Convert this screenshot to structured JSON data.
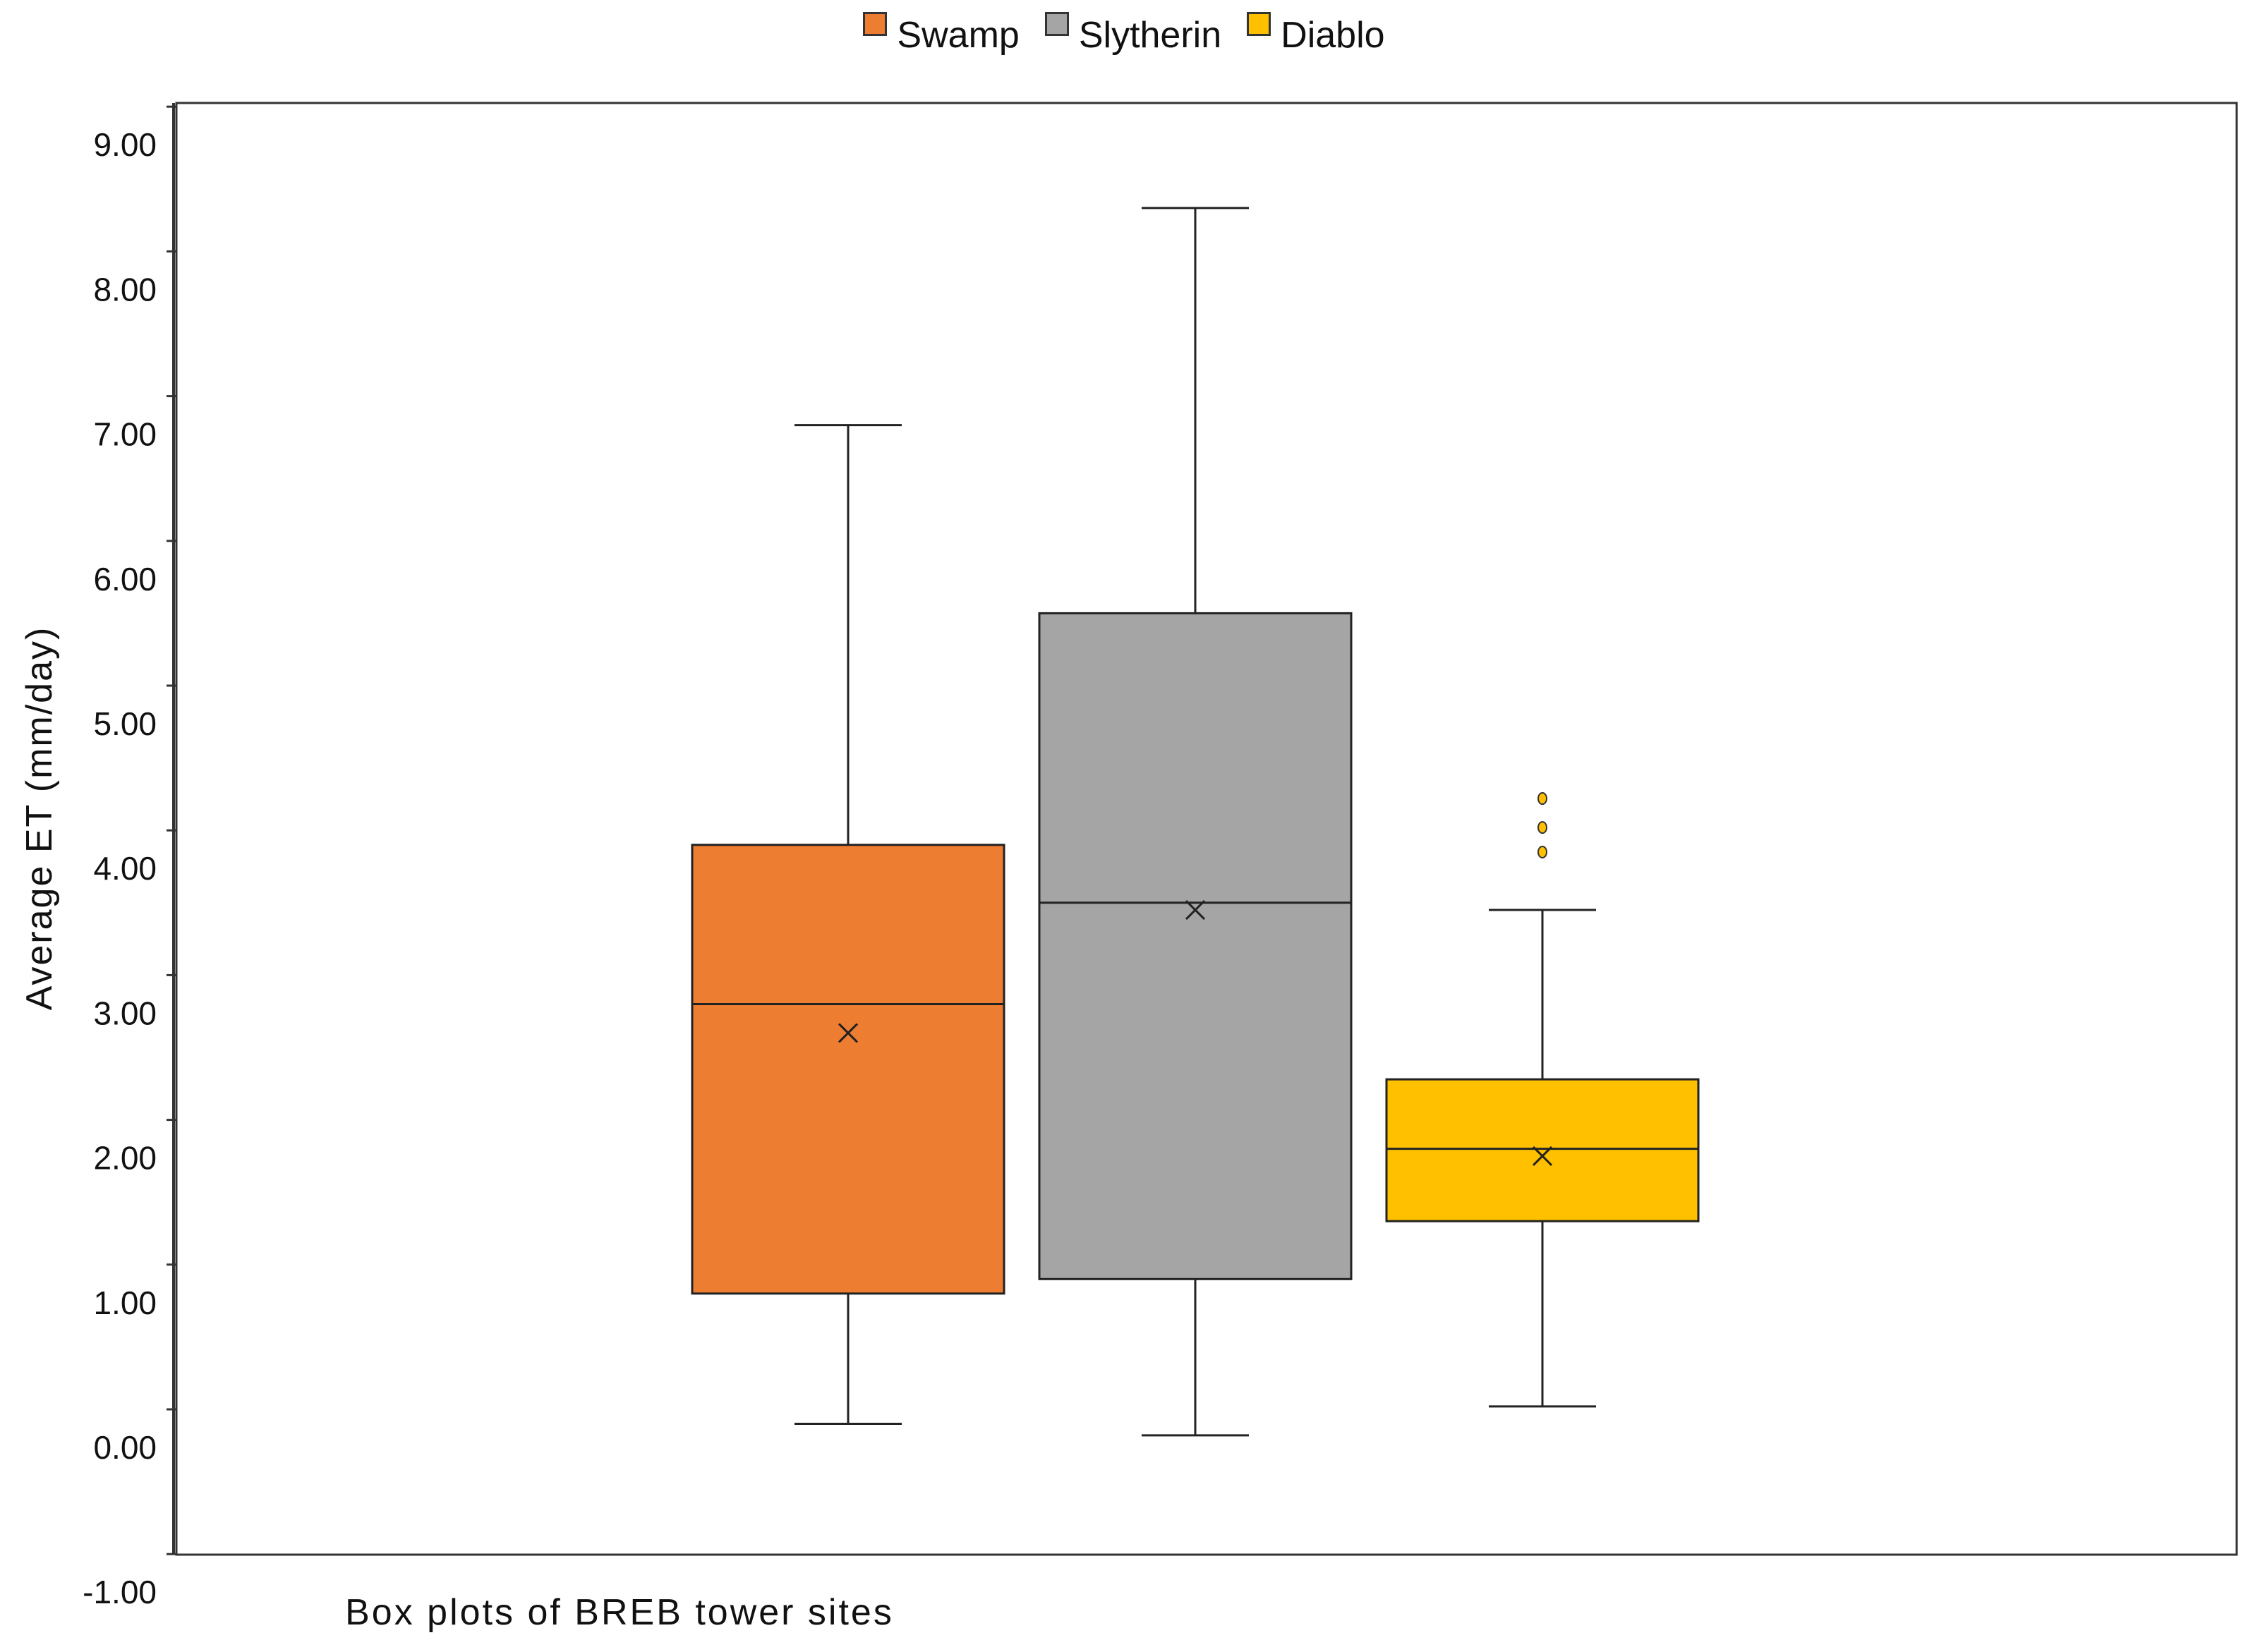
{
  "chart_data": {
    "type": "box",
    "title": "",
    "xlabel": "Box plots of BREB tower sites",
    "ylabel": "Average ET (mm/day)",
    "ylim": [
      -1.0,
      9.0
    ],
    "yticks": [
      "-1.00",
      "0.00",
      "1.00",
      "2.00",
      "3.00",
      "4.00",
      "5.00",
      "6.00",
      "7.00",
      "8.00",
      "9.00"
    ],
    "grid": false,
    "legend_position": "top-center",
    "series": [
      {
        "name": "Swamp",
        "color": "#ED7D31",
        "whisker_low": -0.1,
        "q1": 0.8,
        "median": 2.8,
        "q3": 3.9,
        "whisker_high": 6.8,
        "mean": 2.6,
        "outliers": []
      },
      {
        "name": "Slytherin",
        "color": "#A5A5A5",
        "whisker_low": -0.18,
        "q1": 0.9,
        "median": 3.5,
        "q3": 5.5,
        "whisker_high": 8.3,
        "mean": 3.45,
        "outliers": []
      },
      {
        "name": "Diablo",
        "color": "#FFC000",
        "whisker_low": 0.02,
        "q1": 1.3,
        "median": 1.8,
        "q3": 2.28,
        "whisker_high": 3.45,
        "mean": 1.75,
        "outliers": [
          3.85,
          4.02,
          4.22
        ]
      }
    ]
  }
}
